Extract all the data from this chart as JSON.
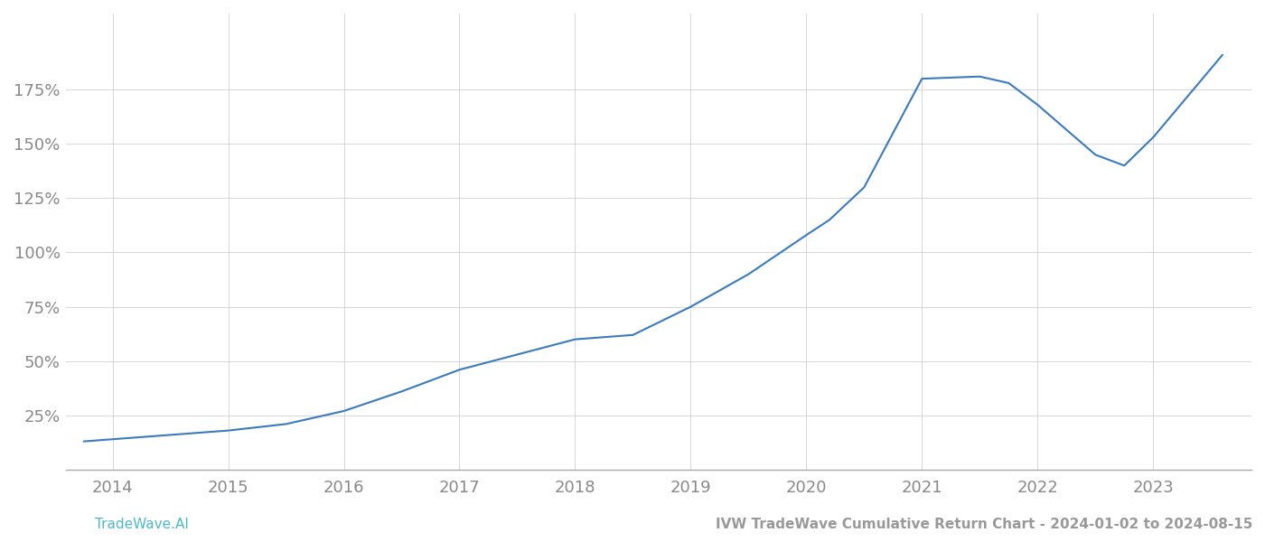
{
  "footer_left": "TradeWave.AI",
  "footer_right": "IVW TradeWave Cumulative Return Chart - 2024-01-02 to 2024-08-15",
  "line_color": "#3a7abf",
  "background_color": "#ffffff",
  "grid_color": "#cccccc",
  "x_years": [
    2013.75,
    2014.0,
    2014.5,
    2015.0,
    2015.5,
    2016.0,
    2016.5,
    2017.0,
    2017.5,
    2018.0,
    2018.5,
    2019.0,
    2019.5,
    2020.0,
    2020.2,
    2020.5,
    2021.0,
    2021.5,
    2021.75,
    2022.0,
    2022.5,
    2022.75,
    2023.0,
    2023.6
  ],
  "y_values": [
    13,
    14,
    16,
    18,
    21,
    27,
    36,
    46,
    53,
    60,
    62,
    75,
    90,
    108,
    115,
    130,
    180,
    181,
    178,
    168,
    145,
    140,
    153,
    191
  ],
  "ytick_values": [
    25,
    50,
    75,
    100,
    125,
    150,
    175
  ],
  "ytick_labels": [
    "25%",
    "50%",
    "75%",
    "100%",
    "125%",
    "150%",
    "175%"
  ],
  "xtick_values": [
    2014,
    2015,
    2016,
    2017,
    2018,
    2019,
    2020,
    2021,
    2022,
    2023
  ],
  "xlim": [
    2013.6,
    2023.85
  ],
  "ylim": [
    0,
    210
  ],
  "line_width": 1.5,
  "footer_left_color": "#4db8c8",
  "footer_right_color": "#999999",
  "axis_color": "#aaaaaa",
  "tick_color": "#888888",
  "grid_alpha": 0.8,
  "tick_fontsize": 13,
  "footer_fontsize": 11
}
